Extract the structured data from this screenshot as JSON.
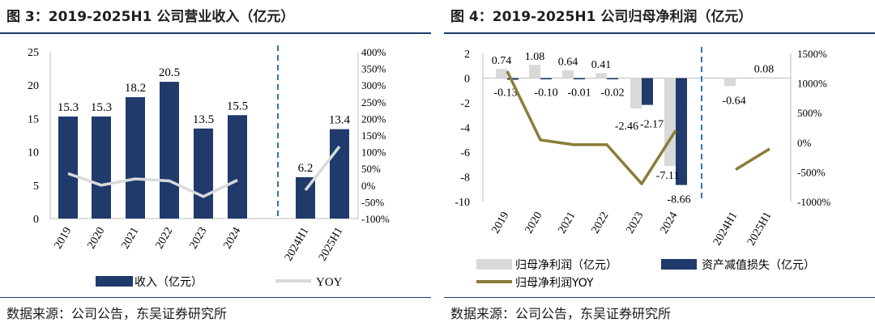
{
  "chart_data": [
    {
      "type": "bar",
      "title": "图 3：2019-2025H1 公司营业收入（亿元）",
      "categories": [
        "2019",
        "2020",
        "2021",
        "2022",
        "2023",
        "2024",
        "2024H1",
        "2025H1"
      ],
      "series": [
        {
          "name": "收入（亿元）",
          "type": "bar",
          "axis": "left",
          "color": "#1f3a6b",
          "values": [
            15.3,
            15.3,
            18.2,
            20.5,
            13.5,
            15.5,
            6.2,
            13.4
          ]
        },
        {
          "name": "YOY",
          "type": "line",
          "axis": "right",
          "color": "#d9d9d9",
          "values": [
            0.35,
            0.0,
            0.19,
            0.13,
            -0.34,
            0.15,
            -0.15,
            1.16
          ]
        }
      ],
      "data_labels": [
        "15.3",
        "15.3",
        "18.2",
        "20.5",
        "13.5",
        "15.5",
        "6.2",
        "13.4"
      ],
      "left_axis": {
        "ylim": [
          0,
          25
        ],
        "ticks": [
          "0",
          "5",
          "10",
          "15",
          "20",
          "25"
        ]
      },
      "right_axis": {
        "ylim": [
          -100,
          400
        ],
        "ticks": [
          "-100%",
          "-50%",
          "0%",
          "50%",
          "100%",
          "150%",
          "200%",
          "250%",
          "300%",
          "350%",
          "400%"
        ]
      },
      "legend": [
        "收入（亿元）",
        "YOY"
      ],
      "source": "数据来源：公司公告，东吴证券研究所"
    },
    {
      "type": "bar",
      "title": "图 4：2019-2025H1 公司归母净利润（亿元）",
      "categories": [
        "2019",
        "2020",
        "2021",
        "2022",
        "2023",
        "2024",
        "2024H1",
        "2025H1"
      ],
      "series": [
        {
          "name": "归母净利润（亿元）",
          "type": "bar",
          "axis": "left",
          "color": "#d9d9d9",
          "values": [
            0.74,
            1.08,
            0.64,
            0.41,
            -2.46,
            -7.11,
            -0.64,
            0.08
          ]
        },
        {
          "name": "资产减值损失（亿元）",
          "type": "bar",
          "axis": "left",
          "color": "#1f3a6b",
          "values": [
            -0.13,
            -0.1,
            -0.01,
            -0.02,
            -2.17,
            -8.66,
            null,
            null
          ]
        },
        {
          "name": "归母净利润YOY",
          "type": "line",
          "axis": "right",
          "color": "#8b7d3a",
          "values": [
            12.0,
            0.4,
            -0.4,
            -0.4,
            -7.0,
            2.0,
            -4.6,
            -1.1
          ]
        }
      ],
      "bar_labels": [
        "0.74",
        "1.08",
        "0.64",
        "0.41",
        "-2.46",
        "-7.11",
        "-0.64",
        "0.08"
      ],
      "loss_labels": [
        "-0.13",
        "-0.10",
        "-0.01",
        "-0.02",
        "-2.17",
        "-8.66"
      ],
      "left_axis": {
        "ylim": [
          -10,
          2
        ],
        "ticks": [
          "-10",
          "-8",
          "-6",
          "-4",
          "-2",
          "0",
          "2"
        ]
      },
      "right_axis": {
        "ylim": [
          -1000,
          1500
        ],
        "ticks": [
          "-1000%",
          "-500%",
          "0%",
          "500%",
          "1000%",
          "1500%"
        ]
      },
      "legend": [
        "归母净利润（亿元）",
        "资产减值损失（亿元）",
        "归母净利润YOY"
      ],
      "source": "数据来源：公司公告，东吴证券研究所"
    }
  ]
}
